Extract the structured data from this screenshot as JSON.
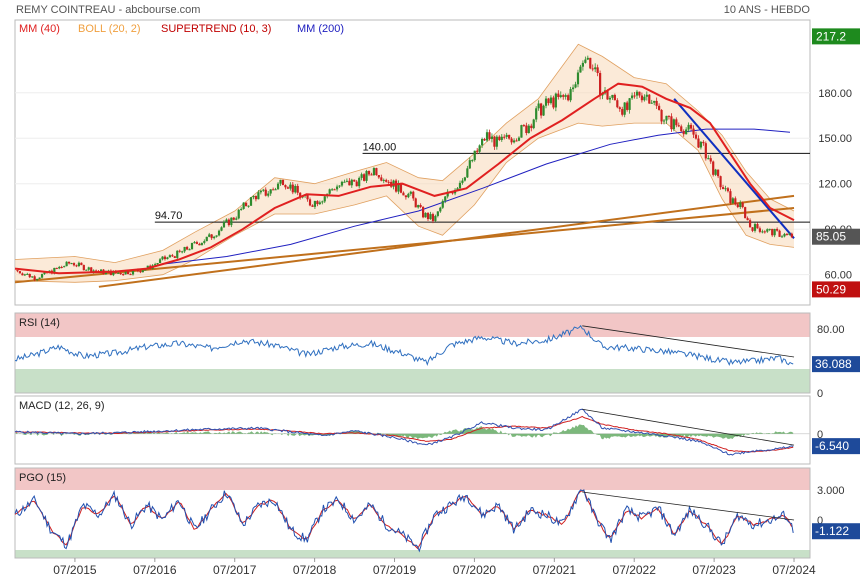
{
  "header": {
    "title": "REMY COINTREAU - abcbourse.com",
    "subtitle": "10 ANS - HEBDO"
  },
  "colors": {
    "price_up": "#2e8b2e",
    "price_down": "#cc2020",
    "mm40": "#e02020",
    "boll": "#f0a040",
    "boll_fill": "#f7d9b8",
    "supertrend": "#c00000",
    "mm200": "#2020c0",
    "trendline": "#c0701c",
    "rsi_line": "#3070c0",
    "macd_line": "#3050b0",
    "macd_signal": "#d02020",
    "macd_hist": "#50a050",
    "pgo_line": "#2050b0",
    "pgo_signal": "#d02020",
    "zone_red": "#f2c6c6",
    "zone_green": "#c8e0c8",
    "badge_green": "#1e8a1e",
    "badge_red": "#c01010",
    "badge_blue": "#1e4a9a",
    "badge_gray": "#555555"
  },
  "chart_data": [
    {
      "type": "line",
      "panel": "price",
      "legend": [
        {
          "label": "MM (40)",
          "color": "#e02020"
        },
        {
          "label": "BOLL (20, 2)",
          "color": "#f0a040"
        },
        {
          "label": "SUPERTREND (10, 3)",
          "color": "#c00000"
        },
        {
          "label": "MM (200)",
          "color": "#2020c0"
        }
      ],
      "x_ticks": [
        "07/2015",
        "07/2016",
        "07/2017",
        "07/2018",
        "07/2019",
        "07/2020",
        "07/2021",
        "07/2022",
        "07/2023",
        "07/2024"
      ],
      "x_range": [
        2014.75,
        2024.7
      ],
      "y_ticks": [
        60,
        90,
        120,
        150,
        180
      ],
      "y_range": [
        40,
        228
      ],
      "badges": [
        {
          "label": "217.2",
          "value": 217.2,
          "kind": "green"
        },
        {
          "label": "85.05",
          "value": 85.05,
          "kind": "gray"
        },
        {
          "label": "50.29",
          "value": 50.29,
          "kind": "red"
        }
      ],
      "hlines": [
        {
          "label": "94.70",
          "value": 94.7,
          "x_from": 2016.5,
          "label_at": 2016.5
        },
        {
          "label": "140.00",
          "value": 140.0,
          "x_from": 2019.1,
          "label_at": 2019.1
        }
      ],
      "close": [
        [
          2014.75,
          63
        ],
        [
          2015.0,
          58
        ],
        [
          2015.2,
          62
        ],
        [
          2015.45,
          68
        ],
        [
          2015.6,
          65
        ],
        [
          2015.8,
          62
        ],
        [
          2016.0,
          61
        ],
        [
          2016.2,
          62
        ],
        [
          2016.4,
          64
        ],
        [
          2016.6,
          70
        ],
        [
          2016.8,
          74
        ],
        [
          2017.0,
          80
        ],
        [
          2017.2,
          85
        ],
        [
          2017.35,
          92
        ],
        [
          2017.5,
          98
        ],
        [
          2017.6,
          104
        ],
        [
          2017.75,
          112
        ],
        [
          2017.9,
          114
        ],
        [
          2018.0,
          117
        ],
        [
          2018.1,
          123
        ],
        [
          2018.3,
          113
        ],
        [
          2018.45,
          107
        ],
        [
          2018.6,
          111
        ],
        [
          2018.75,
          118
        ],
        [
          2018.9,
          120
        ],
        [
          2019.1,
          123
        ],
        [
          2019.25,
          130
        ],
        [
          2019.35,
          125
        ],
        [
          2019.55,
          117
        ],
        [
          2019.7,
          112
        ],
        [
          2019.85,
          100
        ],
        [
          2020.0,
          96
        ],
        [
          2020.15,
          112
        ],
        [
          2020.3,
          120
        ],
        [
          2020.5,
          138
        ],
        [
          2020.65,
          152
        ],
        [
          2020.8,
          146
        ],
        [
          2021.0,
          152
        ],
        [
          2021.15,
          157
        ],
        [
          2021.3,
          168
        ],
        [
          2021.45,
          174
        ],
        [
          2021.6,
          176
        ],
        [
          2021.75,
          182
        ],
        [
          2021.85,
          205
        ],
        [
          2021.95,
          200
        ],
        [
          2022.1,
          180
        ],
        [
          2022.25,
          175
        ],
        [
          2022.4,
          168
        ],
        [
          2022.55,
          180
        ],
        [
          2022.7,
          178
        ],
        [
          2022.8,
          168
        ],
        [
          2022.95,
          160
        ],
        [
          2023.1,
          158
        ],
        [
          2023.25,
          152
        ],
        [
          2023.4,
          140
        ],
        [
          2023.55,
          122
        ],
        [
          2023.7,
          110
        ],
        [
          2023.85,
          104
        ],
        [
          2023.95,
          92
        ],
        [
          2024.1,
          90
        ],
        [
          2024.3,
          87
        ],
        [
          2024.5,
          85.05
        ]
      ],
      "mm40": [
        [
          2014.75,
          64
        ],
        [
          2015.3,
          61
        ],
        [
          2016.0,
          62
        ],
        [
          2016.4,
          64
        ],
        [
          2016.8,
          70
        ],
        [
          2017.2,
          78
        ],
        [
          2017.6,
          90
        ],
        [
          2018.0,
          104
        ],
        [
          2018.4,
          113
        ],
        [
          2018.8,
          112
        ],
        [
          2019.2,
          118
        ],
        [
          2019.6,
          120
        ],
        [
          2020.0,
          112
        ],
        [
          2020.4,
          117
        ],
        [
          2020.8,
          133
        ],
        [
          2021.2,
          150
        ],
        [
          2021.6,
          162
        ],
        [
          2022.0,
          176
        ],
        [
          2022.3,
          186
        ],
        [
          2022.6,
          184
        ],
        [
          2022.9,
          176
        ],
        [
          2023.2,
          170
        ],
        [
          2023.45,
          160
        ],
        [
          2023.7,
          140
        ],
        [
          2023.95,
          120
        ],
        [
          2024.2,
          104
        ],
        [
          2024.5,
          96
        ]
      ],
      "boll_upper": [
        [
          2014.75,
          70
        ],
        [
          2015.5,
          72
        ],
        [
          2016.0,
          68
        ],
        [
          2016.6,
          76
        ],
        [
          2017.0,
          88
        ],
        [
          2017.5,
          102
        ],
        [
          2018.0,
          124
        ],
        [
          2018.5,
          120
        ],
        [
          2019.0,
          128
        ],
        [
          2019.4,
          134
        ],
        [
          2019.8,
          124
        ],
        [
          2020.1,
          122
        ],
        [
          2020.5,
          140
        ],
        [
          2020.9,
          160
        ],
        [
          2021.3,
          176
        ],
        [
          2021.8,
          212
        ],
        [
          2022.1,
          204
        ],
        [
          2022.5,
          190
        ],
        [
          2022.9,
          186
        ],
        [
          2023.3,
          168
        ],
        [
          2023.6,
          152
        ],
        [
          2023.9,
          128
        ],
        [
          2024.2,
          110
        ],
        [
          2024.5,
          102
        ]
      ],
      "boll_lower": [
        [
          2014.75,
          56
        ],
        [
          2015.5,
          55
        ],
        [
          2016.0,
          56
        ],
        [
          2016.6,
          60
        ],
        [
          2017.0,
          70
        ],
        [
          2017.5,
          86
        ],
        [
          2018.0,
          100
        ],
        [
          2018.5,
          100
        ],
        [
          2019.0,
          106
        ],
        [
          2019.4,
          112
        ],
        [
          2019.8,
          92
        ],
        [
          2020.1,
          86
        ],
        [
          2020.5,
          106
        ],
        [
          2020.9,
          134
        ],
        [
          2021.3,
          150
        ],
        [
          2021.8,
          160
        ],
        [
          2022.1,
          158
        ],
        [
          2022.5,
          160
        ],
        [
          2022.9,
          160
        ],
        [
          2023.3,
          142
        ],
        [
          2023.6,
          110
        ],
        [
          2023.9,
          86
        ],
        [
          2024.2,
          80
        ],
        [
          2024.5,
          78
        ]
      ],
      "mm200": [
        [
          2016.6,
          67
        ],
        [
          2017.4,
          72
        ],
        [
          2018.2,
          80
        ],
        [
          2019.0,
          92
        ],
        [
          2019.8,
          102
        ],
        [
          2020.6,
          117
        ],
        [
          2021.4,
          133
        ],
        [
          2022.2,
          146
        ],
        [
          2022.8,
          152
        ],
        [
          2023.4,
          156
        ],
        [
          2024.0,
          156
        ],
        [
          2024.45,
          154
        ]
      ],
      "trendlines": [
        [
          [
            2014.75,
            55
          ],
          [
            2024.5,
            104
          ]
        ],
        [
          [
            2015.8,
            52
          ],
          [
            2024.5,
            112
          ]
        ],
        [
          [
            2023.0,
            176
          ],
          [
            2024.5,
            84
          ]
        ]
      ]
    },
    {
      "type": "line",
      "panel": "rsi",
      "title": "RSI (14)",
      "y_ticks": [
        0,
        80
      ],
      "y_range": [
        0,
        100
      ],
      "zones": {
        "upper": 70,
        "lower": 30
      },
      "badge": {
        "label": "36.088",
        "value": 36.088
      },
      "values": [
        [
          2014.75,
          42
        ],
        [
          2015.0,
          48
        ],
        [
          2015.3,
          58
        ],
        [
          2015.6,
          46
        ],
        [
          2016.0,
          50
        ],
        [
          2016.4,
          58
        ],
        [
          2016.8,
          62
        ],
        [
          2017.2,
          56
        ],
        [
          2017.6,
          66
        ],
        [
          2018.0,
          60
        ],
        [
          2018.4,
          48
        ],
        [
          2018.8,
          58
        ],
        [
          2019.2,
          62
        ],
        [
          2019.6,
          50
        ],
        [
          2019.9,
          38
        ],
        [
          2020.2,
          60
        ],
        [
          2020.6,
          70
        ],
        [
          2021.0,
          62
        ],
        [
          2021.4,
          66
        ],
        [
          2021.85,
          82
        ],
        [
          2022.1,
          58
        ],
        [
          2022.5,
          56
        ],
        [
          2022.9,
          52
        ],
        [
          2023.3,
          46
        ],
        [
          2023.7,
          38
        ],
        [
          2024.0,
          40
        ],
        [
          2024.3,
          44
        ],
        [
          2024.5,
          36
        ]
      ],
      "trendline": [
        [
          2021.85,
          84
        ],
        [
          2024.5,
          45
        ]
      ]
    },
    {
      "type": "line",
      "panel": "macd",
      "title": "MACD (12, 26, 9)",
      "y_ticks": [
        0
      ],
      "y_range": [
        -16,
        20
      ],
      "badge": {
        "label": "-6.540",
        "value": -6.54
      },
      "macd": [
        [
          2014.75,
          1
        ],
        [
          2015.5,
          0
        ],
        [
          2016.0,
          0.5
        ],
        [
          2016.6,
          1.5
        ],
        [
          2017.2,
          2.5
        ],
        [
          2017.8,
          3
        ],
        [
          2018.2,
          1
        ],
        [
          2018.6,
          -1
        ],
        [
          2019.0,
          1.5
        ],
        [
          2019.5,
          -2
        ],
        [
          2019.9,
          -6
        ],
        [
          2020.2,
          -2
        ],
        [
          2020.6,
          6
        ],
        [
          2021.0,
          3
        ],
        [
          2021.4,
          2
        ],
        [
          2021.85,
          13
        ],
        [
          2022.1,
          3
        ],
        [
          2022.5,
          1
        ],
        [
          2022.9,
          -1
        ],
        [
          2023.3,
          -4
        ],
        [
          2023.7,
          -11
        ],
        [
          2024.0,
          -9
        ],
        [
          2024.3,
          -8
        ],
        [
          2024.5,
          -6.54
        ]
      ],
      "signal": [
        [
          2014.75,
          1
        ],
        [
          2015.5,
          0.5
        ],
        [
          2016.0,
          0.3
        ],
        [
          2016.6,
          1
        ],
        [
          2017.2,
          2
        ],
        [
          2017.8,
          2.5
        ],
        [
          2018.2,
          1.5
        ],
        [
          2018.6,
          0
        ],
        [
          2019.0,
          0.5
        ],
        [
          2019.5,
          -1
        ],
        [
          2019.9,
          -4
        ],
        [
          2020.2,
          -3
        ],
        [
          2020.6,
          3
        ],
        [
          2021.0,
          4
        ],
        [
          2021.4,
          3
        ],
        [
          2021.85,
          9
        ],
        [
          2022.1,
          5
        ],
        [
          2022.5,
          2
        ],
        [
          2022.9,
          0
        ],
        [
          2023.3,
          -3
        ],
        [
          2023.7,
          -9
        ],
        [
          2024.0,
          -9.5
        ],
        [
          2024.3,
          -8.5
        ],
        [
          2024.5,
          -7
        ]
      ],
      "trendline": [
        [
          2021.85,
          13
        ],
        [
          2024.5,
          -6
        ]
      ]
    },
    {
      "type": "line",
      "panel": "pgo",
      "title": "PGO (15)",
      "y_ticks": [
        3.0,
        0
      ],
      "y_tick_labels": [
        "3.000",
        "0"
      ],
      "y_range": [
        -3.8,
        5.2
      ],
      "zones": {
        "upper": 3,
        "lower": -3
      },
      "badge": {
        "label": "-1.122",
        "value": -1.122
      },
      "values": [
        [
          2014.75,
          0.5
        ],
        [
          2015.0,
          2
        ],
        [
          2015.2,
          -1
        ],
        [
          2015.4,
          -2.5
        ],
        [
          2015.6,
          1.5
        ],
        [
          2015.8,
          0.5
        ],
        [
          2016.0,
          2.5
        ],
        [
          2016.2,
          -0.5
        ],
        [
          2016.4,
          1.5
        ],
        [
          2016.6,
          0
        ],
        [
          2016.8,
          2
        ],
        [
          2017.0,
          -1
        ],
        [
          2017.2,
          1
        ],
        [
          2017.4,
          2.8
        ],
        [
          2017.6,
          -0.5
        ],
        [
          2017.8,
          1.5
        ],
        [
          2018.0,
          2
        ],
        [
          2018.2,
          -1
        ],
        [
          2018.4,
          -2
        ],
        [
          2018.6,
          1
        ],
        [
          2018.8,
          2
        ],
        [
          2019.0,
          0
        ],
        [
          2019.2,
          1.5
        ],
        [
          2019.4,
          -0.5
        ],
        [
          2019.6,
          -1.5
        ],
        [
          2019.8,
          -2.8
        ],
        [
          2020.0,
          0.5
        ],
        [
          2020.2,
          1.5
        ],
        [
          2020.4,
          2.5
        ],
        [
          2020.6,
          0.5
        ],
        [
          2020.8,
          1.5
        ],
        [
          2021.0,
          -1
        ],
        [
          2021.2,
          1
        ],
        [
          2021.4,
          0.5
        ],
        [
          2021.6,
          -0.5
        ],
        [
          2021.85,
          3.3
        ],
        [
          2022.0,
          0.5
        ],
        [
          2022.2,
          -2
        ],
        [
          2022.4,
          1
        ],
        [
          2022.6,
          0.2
        ],
        [
          2022.8,
          1.2
        ],
        [
          2023.0,
          -1.5
        ],
        [
          2023.2,
          1
        ],
        [
          2023.4,
          -0.5
        ],
        [
          2023.6,
          -2.5
        ],
        [
          2023.8,
          0.5
        ],
        [
          2024.0,
          -0.5
        ],
        [
          2024.2,
          0
        ],
        [
          2024.4,
          0.5
        ],
        [
          2024.5,
          -1.122
        ]
      ],
      "trendline": [
        [
          2021.85,
          2.8
        ],
        [
          2024.5,
          0
        ]
      ]
    }
  ]
}
